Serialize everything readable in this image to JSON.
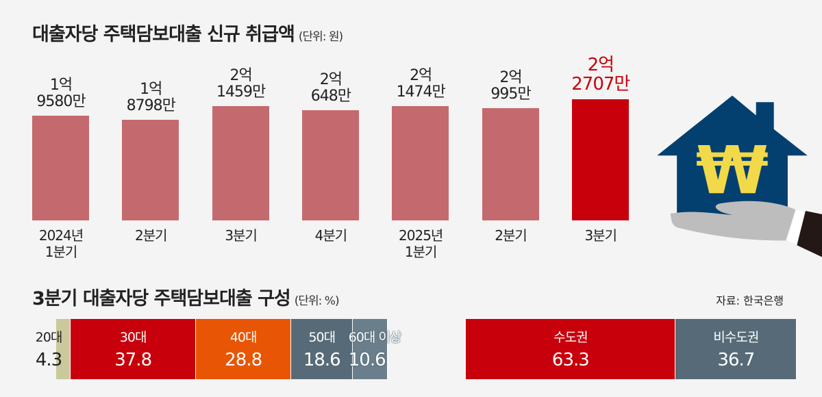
{
  "chart_data": [
    {
      "type": "bar",
      "title": "대출자당 주택담보대출 신규 취급액",
      "unit": "(단위: 원)",
      "categories": [
        [
          "2024년",
          "1분기"
        ],
        [
          "2분기"
        ],
        [
          "3분기"
        ],
        [
          "4분기"
        ],
        [
          "2025년",
          "1분기"
        ],
        [
          "2분기"
        ],
        [
          "3분기"
        ]
      ],
      "value_labels": [
        [
          "1억",
          "9580만"
        ],
        [
          "1억",
          "8798만"
        ],
        [
          "2억",
          "1459만"
        ],
        [
          "2억",
          "648만"
        ],
        [
          "2억",
          "1474만"
        ],
        [
          "2억",
          "995만"
        ],
        [
          "2억",
          "2707만"
        ]
      ],
      "values": [
        195800000,
        187980000,
        214590000,
        206480000,
        214740000,
        209950000,
        227070000
      ],
      "colors": [
        "#c46a6e",
        "#c46a6e",
        "#c46a6e",
        "#c46a6e",
        "#c46a6e",
        "#c46a6e",
        "#c8000b"
      ]
    },
    {
      "type": "bar",
      "stacked": true,
      "title": "3분기 대출자당 주택담보대출 구성",
      "unit": "(단위: %)",
      "groups": [
        {
          "name": "age",
          "segments": [
            {
              "label": "20대",
              "value": 4.3,
              "color": "#c9c99c"
            },
            {
              "label": "30대",
              "value": 37.8,
              "color": "#c8000b"
            },
            {
              "label": "40대",
              "value": 28.8,
              "color": "#e85504"
            },
            {
              "label": "50대",
              "value": 18.6,
              "color": "#566b77"
            },
            {
              "label": "60대 이상",
              "value": 10.6,
              "color": "#6a7f8b"
            }
          ]
        },
        {
          "name": "region",
          "segments": [
            {
              "label": "수도권",
              "value": 63.3,
              "color": "#c8000b"
            },
            {
              "label": "비수도권",
              "value": 36.7,
              "color": "#566b77"
            }
          ]
        }
      ]
    }
  ],
  "source": "자료: 한국은행"
}
